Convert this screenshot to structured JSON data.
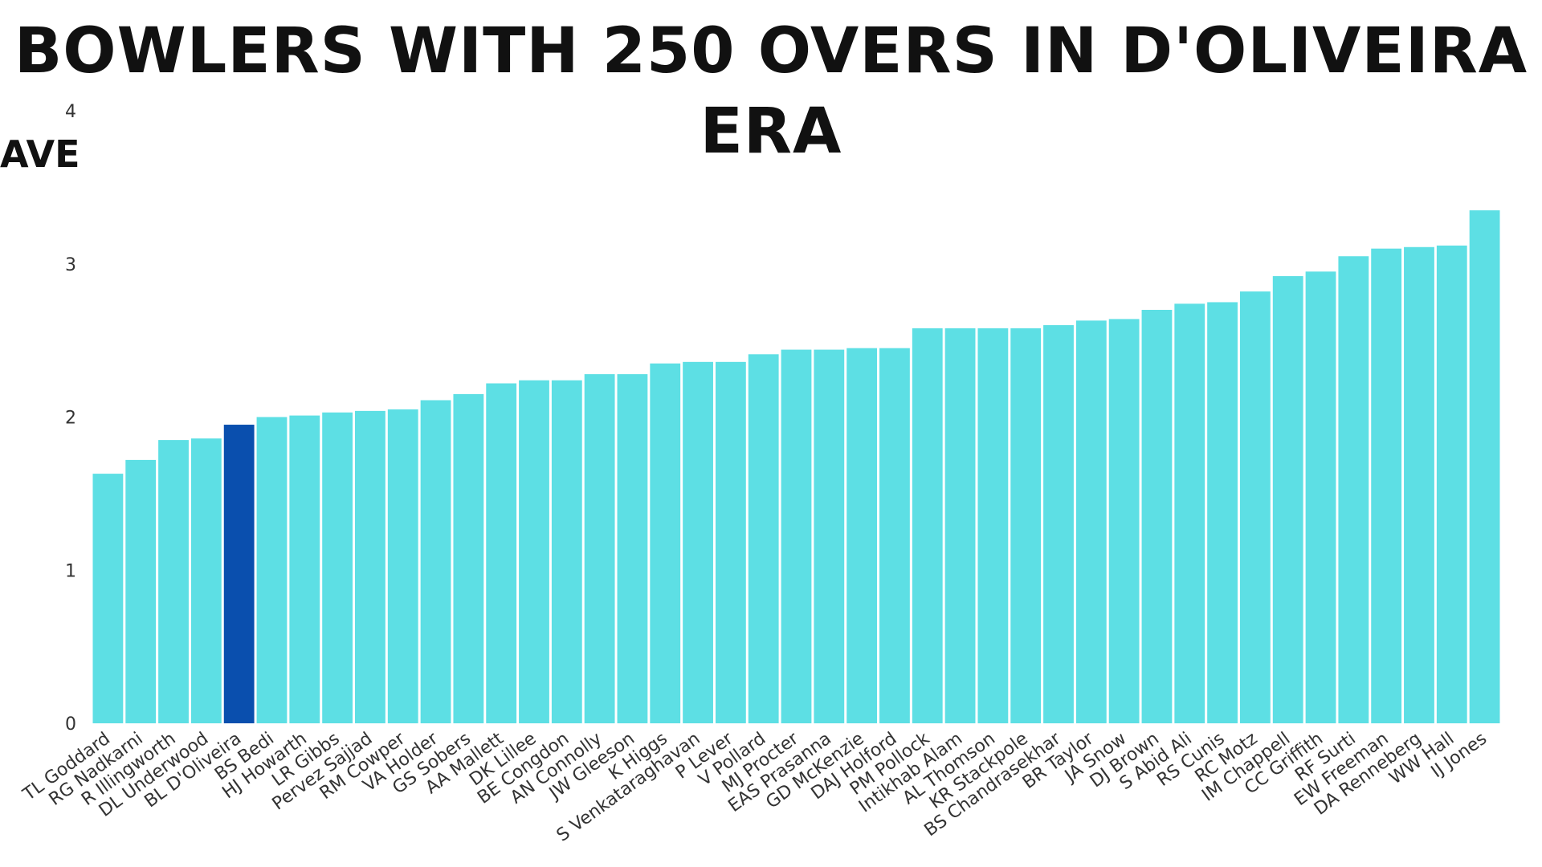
{
  "chart_data": {
    "type": "bar",
    "title": "BOWLERS WITH 250 OVERS IN D'OLIVEIRA ERA",
    "ylabel": "AVE",
    "xlabel": "",
    "ylim": [
      0,
      4
    ],
    "yticks": [
      "0",
      "1",
      "2",
      "3",
      "4"
    ],
    "grid": false,
    "bar_color": "#5ddfe4",
    "highlight_color": "#0a4fae",
    "highlight_category": "BL D'Oliveira",
    "categories": [
      "TL Goddard",
      "RG Nadkarni",
      "R Illingworth",
      "DL Underwood",
      "BL D'Oliveira",
      "BS Bedi",
      "HJ Howarth",
      "LR Gibbs",
      "Pervez Sajjad",
      "RM Cowper",
      "VA Holder",
      "GS Sobers",
      "AA Mallett",
      "DK Lillee",
      "BE Congdon",
      "AN Connolly",
      "JW Gleeson",
      "K Higgs",
      "S Venkataraghavan",
      "P Lever",
      "V Pollard",
      "MJ Procter",
      "EAS Prasanna",
      "GD McKenzie",
      "DAJ Holford",
      "PM Pollock",
      "Intikhab Alam",
      "AL Thomson",
      "KR Stackpole",
      "BS Chandrasekhar",
      "BR Taylor",
      "JA Snow",
      "DJ Brown",
      "S Abid Ali",
      "RS Cunis",
      "RC Motz",
      "IM Chappell",
      "CC Griffith",
      "RF Surti",
      "EW Freeman",
      "DA Renneberg",
      "WW Hall",
      "IJ Jones"
    ],
    "values": [
      1.63,
      1.72,
      1.85,
      1.86,
      1.95,
      2.0,
      2.01,
      2.03,
      2.04,
      2.05,
      2.11,
      2.15,
      2.22,
      2.24,
      2.24,
      2.28,
      2.28,
      2.35,
      2.36,
      2.36,
      2.41,
      2.44,
      2.44,
      2.45,
      2.45,
      2.58,
      2.58,
      2.58,
      2.58,
      2.6,
      2.63,
      2.64,
      2.7,
      2.74,
      2.75,
      2.82,
      2.92,
      2.95,
      3.05,
      3.1,
      3.11,
      3.12,
      3.35
    ]
  }
}
